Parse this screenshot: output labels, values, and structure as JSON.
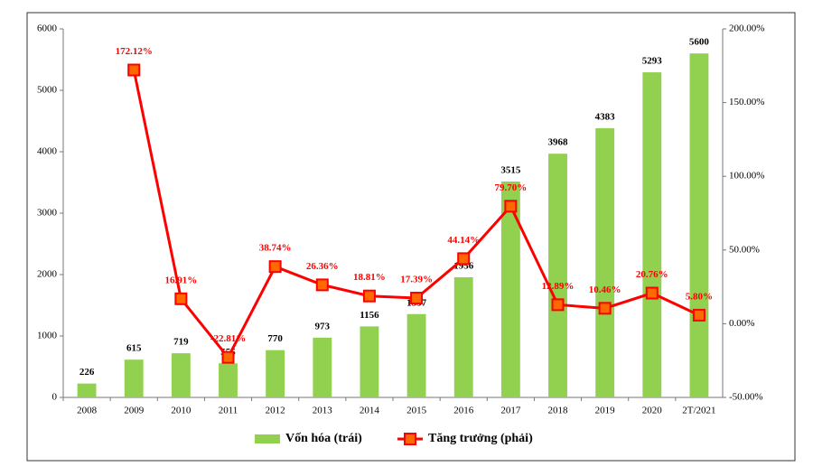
{
  "chart_data": {
    "type": "bar-line",
    "categories": [
      "2008",
      "2009",
      "2010",
      "2011",
      "2012",
      "2013",
      "2014",
      "2015",
      "2016",
      "2017",
      "2018",
      "2019",
      "2020",
      "2T/2021"
    ],
    "series": [
      {
        "name": "Vốn hóa (trái)",
        "type": "bar",
        "color": "#92d050",
        "values": [
          226,
          615,
          719,
          555,
          770,
          973,
          1156,
          1357,
          1956,
          3515,
          3968,
          4383,
          5293,
          5600
        ]
      },
      {
        "name": "Tăng trưởng (phải)",
        "type": "line",
        "axis": "y2",
        "color": "#ff0000",
        "values": [
          null,
          172.12,
          16.91,
          -22.81,
          38.74,
          26.36,
          18.81,
          17.39,
          44.14,
          79.7,
          12.89,
          10.46,
          20.76,
          5.8
        ],
        "value_labels": [
          null,
          "172.12%",
          "16.91%",
          "-22.81%",
          "38.74%",
          "26.36%",
          "18.81%",
          "17.39%",
          "44.14%",
          "79.70%",
          "12.89%",
          "10.46%",
          "20.76%",
          "5.80%"
        ]
      }
    ],
    "ylim": [
      0,
      6000
    ],
    "yticks": [
      0,
      1000,
      2000,
      3000,
      4000,
      5000,
      6000
    ],
    "y2lim": [
      -50,
      200
    ],
    "y2ticks": [
      {
        "value": -50,
        "label": "-50.00%"
      },
      {
        "value": 0,
        "label": "0.00%"
      },
      {
        "value": 50,
        "label": "50.00%"
      },
      {
        "value": 100,
        "label": "100.00%"
      },
      {
        "value": 150,
        "label": "150.00%"
      },
      {
        "value": 200,
        "label": "200.00%"
      }
    ],
    "legend": "bottom"
  }
}
